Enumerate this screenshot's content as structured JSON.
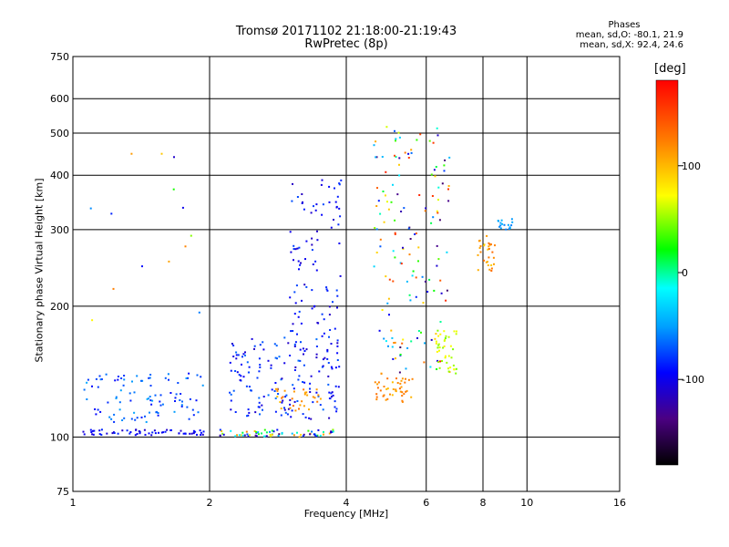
{
  "header": {
    "title_line1": "Tromsø 20171102 21:18:00-21:19:43",
    "title_line2": "RwPretec (8p)"
  },
  "stats": {
    "heading": "Phases",
    "line_o": "mean, sd,O: -80.1, 21.9",
    "line_x": "mean, sd,X:  92.4, 24.6"
  },
  "colorbar": {
    "unit_label": "[deg]",
    "ticks": [
      {
        "label": "100",
        "value": 100
      },
      {
        "label": "0",
        "value": 0
      },
      {
        "label": "-100",
        "value": -100
      }
    ],
    "range": [
      -180,
      180
    ]
  },
  "chart_data": {
    "type": "scatter",
    "xlabel": "Frequency [MHz]",
    "ylabel": "Stationary phase Virtual Height [km]",
    "x_scale": "log",
    "y_scale": "log",
    "xlim": [
      1,
      16
    ],
    "ylim": [
      75,
      750
    ],
    "x_ticks": [
      1,
      2,
      4,
      6,
      8,
      10,
      16
    ],
    "x_tick_labels": [
      "1",
      "2",
      "4",
      "6",
      "8",
      "10",
      "16"
    ],
    "y_ticks": [
      75,
      100,
      200,
      300,
      400,
      500,
      600,
      750
    ],
    "y_tick_labels": [
      "75",
      "100",
      "200",
      "300",
      "400",
      "500",
      "600",
      "750"
    ],
    "grid": true,
    "clusters": [
      {
        "x_range": [
          1.05,
          1.95
        ],
        "y_range": [
          101,
          104
        ],
        "phase_range": [
          -120,
          -90
        ],
        "count": 60
      },
      {
        "x_range": [
          1.05,
          1.95
        ],
        "y_range": [
          108,
          140
        ],
        "phase_range": [
          -100,
          -55
        ],
        "count": 95
      },
      {
        "x_range": [
          2.1,
          3.8
        ],
        "y_range": [
          100,
          104
        ],
        "phase_range": [
          -150,
          120
        ],
        "count": 70
      },
      {
        "x_range": [
          2.2,
          3.9
        ],
        "y_range": [
          110,
          170
        ],
        "phase_range": [
          -120,
          -70
        ],
        "count": 170
      },
      {
        "x_range": [
          2.8,
          3.6
        ],
        "y_range": [
          115,
          130
        ],
        "phase_range": [
          90,
          130
        ],
        "count": 30
      },
      {
        "x_range": [
          3.0,
          3.9
        ],
        "y_range": [
          170,
          400
        ],
        "phase_range": [
          -120,
          -80
        ],
        "count": 90
      },
      {
        "x_range": [
          4.6,
          5.6
        ],
        "y_range": [
          120,
          140
        ],
        "phase_range": [
          90,
          130
        ],
        "count": 45
      },
      {
        "x_range": [
          4.6,
          6.8
        ],
        "y_range": [
          140,
          520
        ],
        "phase_range": [
          -150,
          170
        ],
        "count": 150
      },
      {
        "x_range": [
          6.3,
          7.0
        ],
        "y_range": [
          140,
          180
        ],
        "phase_range": [
          30,
          70
        ],
        "count": 40
      },
      {
        "x_range": [
          7.8,
          8.5
        ],
        "y_range": [
          240,
          290
        ],
        "phase_range": [
          80,
          130
        ],
        "count": 30
      },
      {
        "x_range": [
          8.6,
          9.3
        ],
        "y_range": [
          300,
          320
        ],
        "phase_range": [
          -70,
          -50
        ],
        "count": 18
      },
      {
        "x_range": [
          1.0,
          1.9
        ],
        "y_range": [
          180,
          470
        ],
        "phase_range": [
          -120,
          130
        ],
        "count": 14
      }
    ]
  }
}
